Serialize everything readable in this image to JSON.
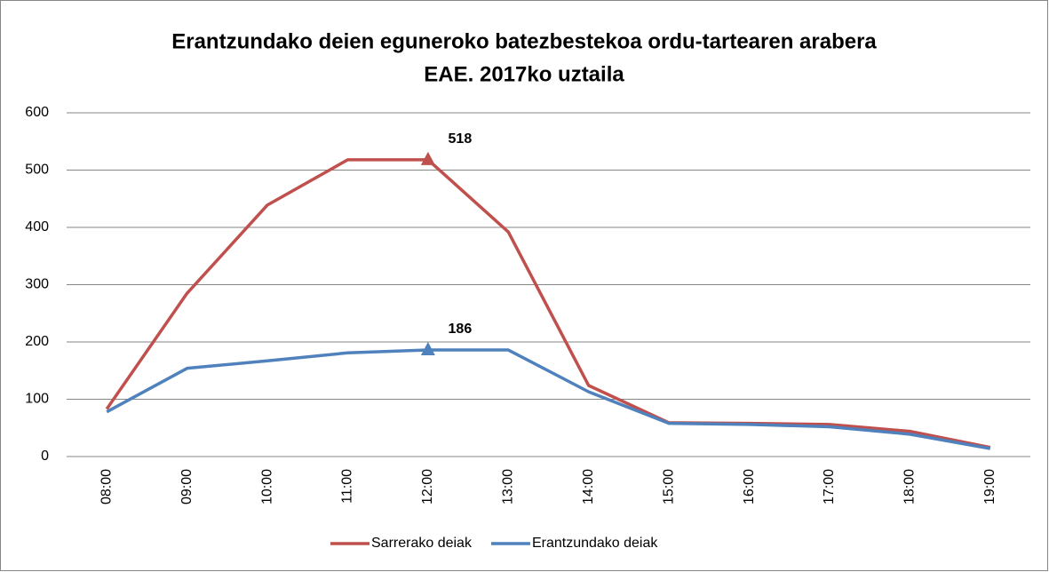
{
  "chart_data": {
    "type": "line",
    "title": "Erantzundako deien eguneroko batezbestekoa ordu-tartearen arabera",
    "subtitle": "EAE. 2017ko uztaila",
    "categories": [
      "08:00",
      "09:00",
      "10:00",
      "11:00",
      "12:00",
      "13:00",
      "14:00",
      "15:00",
      "16:00",
      "17:00",
      "18:00",
      "19:00"
    ],
    "series": [
      {
        "name": "Sarrerako deiak",
        "color": "#c0504d",
        "label_color": "#c00000",
        "values": [
          83,
          285,
          439,
          518,
          518,
          392,
          124,
          59,
          58,
          56,
          44,
          16
        ],
        "value_labels": [
          null,
          null,
          null,
          null,
          "518",
          null,
          null,
          null,
          null,
          null,
          null,
          null
        ]
      },
      {
        "name": "Erantzundako deiak",
        "color": "#4f81bd",
        "label_color": "#c0504d",
        "values": [
          78,
          154,
          167,
          181,
          186,
          186,
          113,
          58,
          56,
          52,
          39,
          14
        ],
        "value_labels": [
          null,
          null,
          null,
          null,
          "186",
          null,
          null,
          null,
          null,
          null,
          null,
          null
        ]
      }
    ],
    "ylim": [
      0,
      600
    ],
    "yticks": [
      0,
      100,
      200,
      300,
      400,
      500,
      600
    ],
    "grid": true,
    "legend": "bottom"
  }
}
